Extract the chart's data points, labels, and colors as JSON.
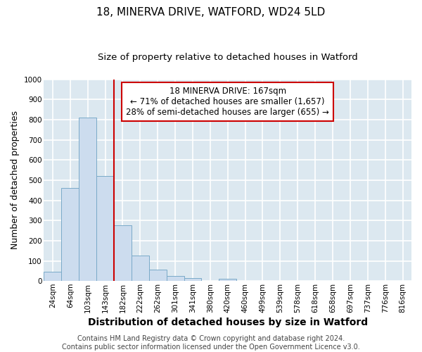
{
  "title1": "18, MINERVA DRIVE, WATFORD, WD24 5LD",
  "title2": "Size of property relative to detached houses in Watford",
  "xlabel": "Distribution of detached houses by size in Watford",
  "ylabel": "Number of detached properties",
  "categories": [
    "24sqm",
    "64sqm",
    "103sqm",
    "143sqm",
    "182sqm",
    "222sqm",
    "262sqm",
    "301sqm",
    "341sqm",
    "380sqm",
    "420sqm",
    "460sqm",
    "499sqm",
    "539sqm",
    "578sqm",
    "618sqm",
    "658sqm",
    "697sqm",
    "737sqm",
    "776sqm",
    "816sqm"
  ],
  "bar_heights": [
    47,
    460,
    810,
    520,
    275,
    125,
    55,
    25,
    15,
    0,
    10,
    0,
    0,
    0,
    0,
    0,
    0,
    0,
    0,
    0,
    0
  ],
  "bar_color": "#ccdcee",
  "bar_edge_color": "#7aaac8",
  "red_line_index": 4,
  "red_line_color": "#cc0000",
  "ylim": [
    0,
    1000
  ],
  "annotation_text": "18 MINERVA DRIVE: 167sqm\n← 71% of detached houses are smaller (1,657)\n28% of semi-detached houses are larger (655) →",
  "annotation_box_color": "#ffffff",
  "annotation_box_edge_color": "#cc0000",
  "footnote": "Contains HM Land Registry data © Crown copyright and database right 2024.\nContains public sector information licensed under the Open Government Licence v3.0.",
  "bg_color": "#dce8f0",
  "grid_color": "#ffffff",
  "title1_fontsize": 11,
  "title2_fontsize": 9.5,
  "xlabel_fontsize": 10,
  "ylabel_fontsize": 9,
  "tick_fontsize": 7.5,
  "footnote_fontsize": 7,
  "annotation_fontsize": 8.5
}
